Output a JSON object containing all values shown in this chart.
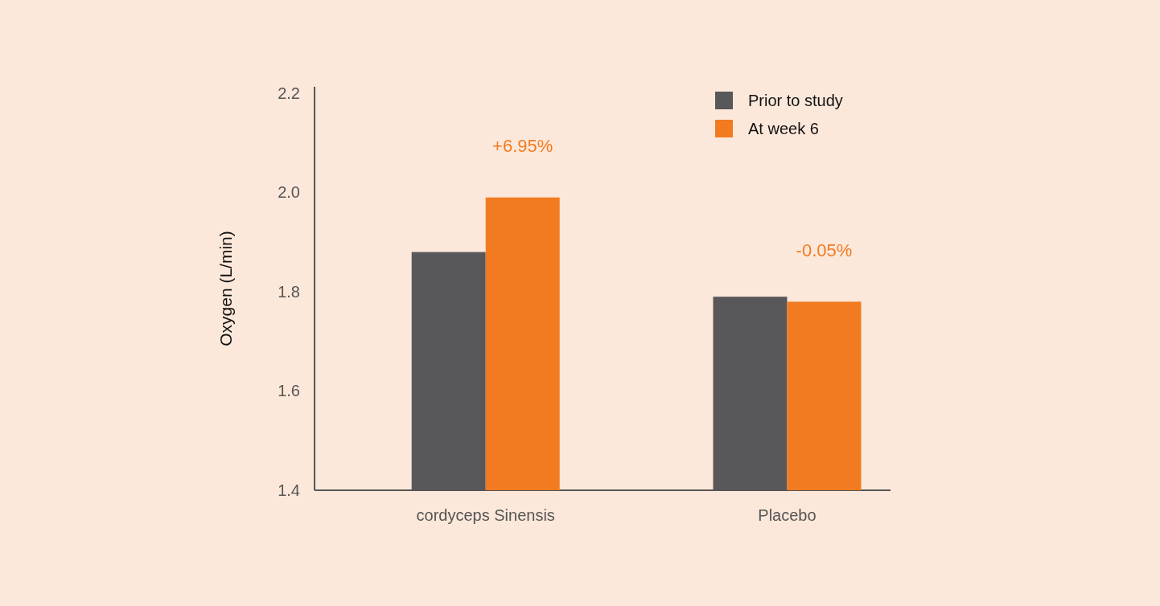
{
  "chart_data": {
    "type": "bar",
    "ylabel": "Oxygen (L/min)",
    "categories": [
      "cordyceps Sinensis",
      "Placebo"
    ],
    "series": [
      {
        "name": "Prior to study",
        "color": "#58575a",
        "values": [
          1.88,
          1.79
        ]
      },
      {
        "name": "At week 6",
        "color": "#f27b21",
        "values": [
          1.99,
          1.78
        ]
      }
    ],
    "ylim": [
      1.4,
      2.2
    ],
    "yticks": [
      {
        "value": 1.4,
        "label": "1.4"
      },
      {
        "value": 1.6,
        "label": "1.6"
      },
      {
        "value": 1.8,
        "label": "1.8"
      },
      {
        "value": 2.0,
        "label": "2.0"
      },
      {
        "value": 2.2,
        "label": "2.2"
      }
    ],
    "annotations": [
      "+6.95%",
      "-0.05%"
    ],
    "grid": false,
    "legend": "top right"
  }
}
